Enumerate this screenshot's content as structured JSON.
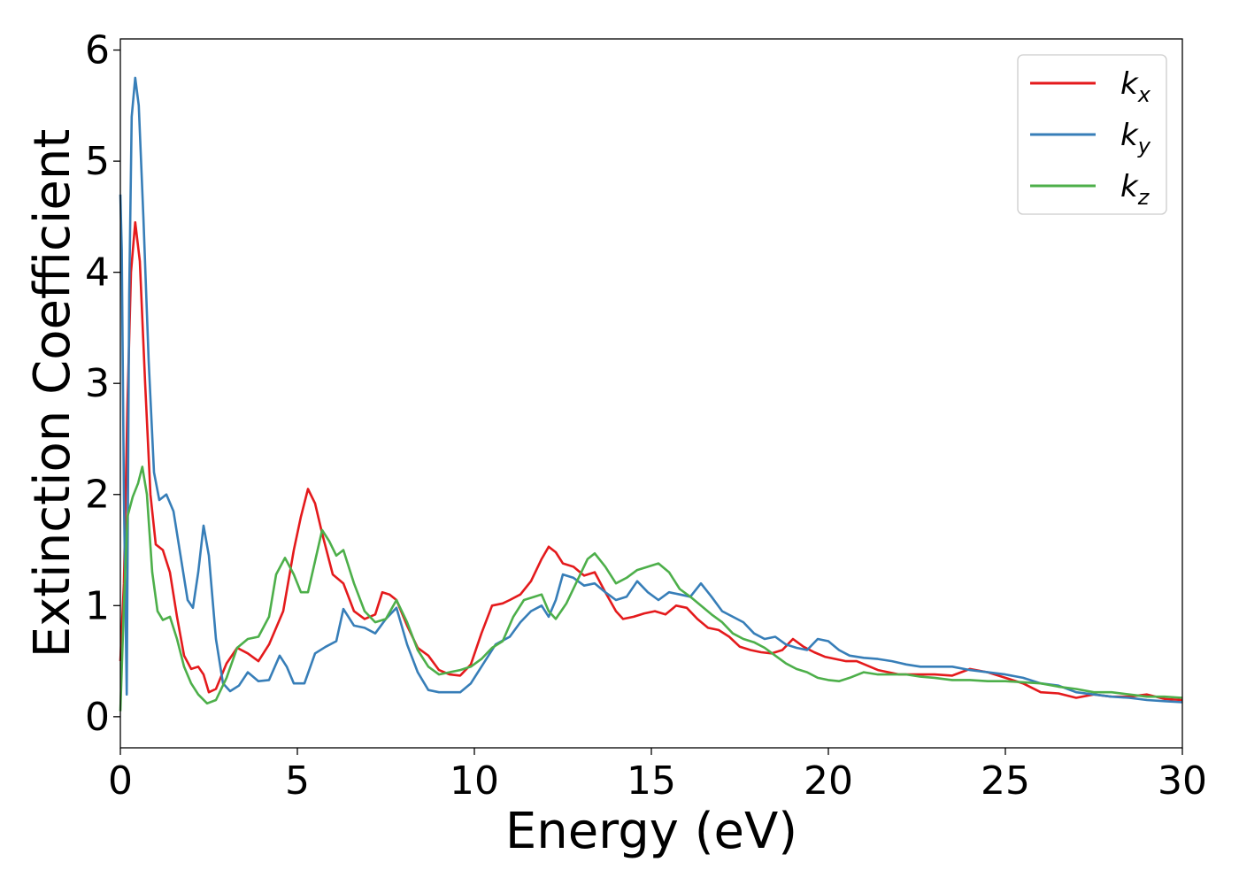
{
  "chart_data": {
    "type": "line",
    "xlabel": "Energy (eV)",
    "ylabel": "Extinction Coefficient",
    "xlim": [
      0,
      30
    ],
    "ylim": [
      -0.28,
      6.1
    ],
    "xticks": [
      "0",
      "5",
      "10",
      "15",
      "20",
      "25",
      "30"
    ],
    "yticks": [
      "0",
      "1",
      "2",
      "3",
      "4",
      "5",
      "6"
    ],
    "grid": false,
    "legend_position": "top-right",
    "series": [
      {
        "name": "k",
        "subscript": "x",
        "color": "#e41a1c",
        "points": [
          [
            0,
            0.5
          ],
          [
            0.1,
            1.2
          ],
          [
            0.2,
            2.8
          ],
          [
            0.3,
            4.0
          ],
          [
            0.42,
            4.45
          ],
          [
            0.55,
            4.1
          ],
          [
            0.7,
            3.0
          ],
          [
            0.85,
            2.0
          ],
          [
            1.0,
            1.55
          ],
          [
            1.2,
            1.5
          ],
          [
            1.4,
            1.3
          ],
          [
            1.6,
            0.9
          ],
          [
            1.8,
            0.55
          ],
          [
            2.0,
            0.43
          ],
          [
            2.2,
            0.45
          ],
          [
            2.35,
            0.38
          ],
          [
            2.5,
            0.22
          ],
          [
            2.7,
            0.25
          ],
          [
            3.0,
            0.48
          ],
          [
            3.3,
            0.62
          ],
          [
            3.6,
            0.57
          ],
          [
            3.9,
            0.5
          ],
          [
            4.2,
            0.65
          ],
          [
            4.6,
            0.95
          ],
          [
            4.9,
            1.5
          ],
          [
            5.1,
            1.8
          ],
          [
            5.3,
            2.05
          ],
          [
            5.5,
            1.92
          ],
          [
            5.7,
            1.65
          ],
          [
            6.0,
            1.28
          ],
          [
            6.3,
            1.2
          ],
          [
            6.6,
            0.95
          ],
          [
            6.9,
            0.88
          ],
          [
            7.2,
            0.92
          ],
          [
            7.4,
            1.12
          ],
          [
            7.6,
            1.1
          ],
          [
            7.8,
            1.05
          ],
          [
            8.1,
            0.82
          ],
          [
            8.4,
            0.62
          ],
          [
            8.7,
            0.55
          ],
          [
            9.0,
            0.42
          ],
          [
            9.3,
            0.38
          ],
          [
            9.6,
            0.37
          ],
          [
            9.9,
            0.47
          ],
          [
            10.2,
            0.75
          ],
          [
            10.5,
            1.0
          ],
          [
            10.8,
            1.02
          ],
          [
            11.0,
            1.05
          ],
          [
            11.3,
            1.1
          ],
          [
            11.6,
            1.22
          ],
          [
            11.9,
            1.42
          ],
          [
            12.1,
            1.53
          ],
          [
            12.3,
            1.48
          ],
          [
            12.5,
            1.38
          ],
          [
            12.8,
            1.35
          ],
          [
            13.1,
            1.27
          ],
          [
            13.4,
            1.3
          ],
          [
            13.7,
            1.12
          ],
          [
            14.0,
            0.95
          ],
          [
            14.2,
            0.88
          ],
          [
            14.5,
            0.9
          ],
          [
            14.8,
            0.93
          ],
          [
            15.1,
            0.95
          ],
          [
            15.4,
            0.92
          ],
          [
            15.7,
            1.0
          ],
          [
            16.0,
            0.98
          ],
          [
            16.3,
            0.88
          ],
          [
            16.6,
            0.8
          ],
          [
            16.9,
            0.78
          ],
          [
            17.2,
            0.72
          ],
          [
            17.5,
            0.63
          ],
          [
            17.8,
            0.6
          ],
          [
            18.1,
            0.58
          ],
          [
            18.4,
            0.57
          ],
          [
            18.7,
            0.6
          ],
          [
            19.0,
            0.7
          ],
          [
            19.3,
            0.63
          ],
          [
            19.6,
            0.58
          ],
          [
            19.9,
            0.54
          ],
          [
            20.2,
            0.52
          ],
          [
            20.5,
            0.5
          ],
          [
            20.8,
            0.5
          ],
          [
            21.1,
            0.46
          ],
          [
            21.4,
            0.42
          ],
          [
            21.7,
            0.4
          ],
          [
            22.0,
            0.38
          ],
          [
            22.5,
            0.38
          ],
          [
            23.0,
            0.38
          ],
          [
            23.5,
            0.37
          ],
          [
            24.0,
            0.43
          ],
          [
            24.5,
            0.4
          ],
          [
            25.0,
            0.35
          ],
          [
            25.5,
            0.3
          ],
          [
            26.0,
            0.22
          ],
          [
            26.5,
            0.21
          ],
          [
            27.0,
            0.17
          ],
          [
            27.5,
            0.2
          ],
          [
            28.0,
            0.18
          ],
          [
            28.5,
            0.18
          ],
          [
            29.0,
            0.2
          ],
          [
            29.5,
            0.16
          ],
          [
            30.0,
            0.15
          ]
        ]
      },
      {
        "name": "k",
        "subscript": "y",
        "color": "#377eb8",
        "points": [
          [
            0,
            4.7
          ],
          [
            0.04,
            4.2
          ],
          [
            0.1,
            2.0
          ],
          [
            0.18,
            0.2
          ],
          [
            0.25,
            3.8
          ],
          [
            0.32,
            5.4
          ],
          [
            0.42,
            5.75
          ],
          [
            0.52,
            5.5
          ],
          [
            0.65,
            4.5
          ],
          [
            0.8,
            3.2
          ],
          [
            0.95,
            2.2
          ],
          [
            1.1,
            1.95
          ],
          [
            1.3,
            2.0
          ],
          [
            1.5,
            1.85
          ],
          [
            1.7,
            1.45
          ],
          [
            1.9,
            1.05
          ],
          [
            2.05,
            0.98
          ],
          [
            2.2,
            1.3
          ],
          [
            2.35,
            1.72
          ],
          [
            2.5,
            1.45
          ],
          [
            2.7,
            0.7
          ],
          [
            2.9,
            0.3
          ],
          [
            3.1,
            0.23
          ],
          [
            3.35,
            0.28
          ],
          [
            3.6,
            0.4
          ],
          [
            3.9,
            0.32
          ],
          [
            4.2,
            0.33
          ],
          [
            4.5,
            0.55
          ],
          [
            4.7,
            0.45
          ],
          [
            4.9,
            0.3
          ],
          [
            5.2,
            0.3
          ],
          [
            5.5,
            0.57
          ],
          [
            5.8,
            0.63
          ],
          [
            6.1,
            0.68
          ],
          [
            6.3,
            0.97
          ],
          [
            6.6,
            0.82
          ],
          [
            6.9,
            0.8
          ],
          [
            7.2,
            0.75
          ],
          [
            7.5,
            0.88
          ],
          [
            7.8,
            0.98
          ],
          [
            8.1,
            0.65
          ],
          [
            8.4,
            0.4
          ],
          [
            8.7,
            0.24
          ],
          [
            9.0,
            0.22
          ],
          [
            9.3,
            0.22
          ],
          [
            9.6,
            0.22
          ],
          [
            9.9,
            0.3
          ],
          [
            10.2,
            0.45
          ],
          [
            10.6,
            0.65
          ],
          [
            11.0,
            0.72
          ],
          [
            11.3,
            0.85
          ],
          [
            11.6,
            0.95
          ],
          [
            11.9,
            1.0
          ],
          [
            12.1,
            0.9
          ],
          [
            12.3,
            1.05
          ],
          [
            12.5,
            1.28
          ],
          [
            12.8,
            1.25
          ],
          [
            13.1,
            1.18
          ],
          [
            13.4,
            1.2
          ],
          [
            13.7,
            1.12
          ],
          [
            14.0,
            1.05
          ],
          [
            14.3,
            1.08
          ],
          [
            14.6,
            1.22
          ],
          [
            14.9,
            1.12
          ],
          [
            15.2,
            1.05
          ],
          [
            15.5,
            1.12
          ],
          [
            15.8,
            1.1
          ],
          [
            16.1,
            1.08
          ],
          [
            16.4,
            1.2
          ],
          [
            16.7,
            1.08
          ],
          [
            17.0,
            0.95
          ],
          [
            17.3,
            0.9
          ],
          [
            17.6,
            0.85
          ],
          [
            17.9,
            0.75
          ],
          [
            18.2,
            0.7
          ],
          [
            18.5,
            0.72
          ],
          [
            18.8,
            0.65
          ],
          [
            19.1,
            0.62
          ],
          [
            19.4,
            0.6
          ],
          [
            19.7,
            0.7
          ],
          [
            20.0,
            0.68
          ],
          [
            20.3,
            0.6
          ],
          [
            20.6,
            0.55
          ],
          [
            21.0,
            0.53
          ],
          [
            21.4,
            0.52
          ],
          [
            21.8,
            0.5
          ],
          [
            22.2,
            0.47
          ],
          [
            22.6,
            0.45
          ],
          [
            23.0,
            0.45
          ],
          [
            23.5,
            0.45
          ],
          [
            24.0,
            0.42
          ],
          [
            24.5,
            0.4
          ],
          [
            25.0,
            0.38
          ],
          [
            25.5,
            0.35
          ],
          [
            26.0,
            0.3
          ],
          [
            26.5,
            0.28
          ],
          [
            27.0,
            0.22
          ],
          [
            27.5,
            0.2
          ],
          [
            28.0,
            0.18
          ],
          [
            28.5,
            0.17
          ],
          [
            29.0,
            0.15
          ],
          [
            29.5,
            0.14
          ],
          [
            30.0,
            0.13
          ]
        ]
      },
      {
        "name": "k",
        "subscript": "z",
        "color": "#4daf4a",
        "points": [
          [
            0,
            0.05
          ],
          [
            0.1,
            1.0
          ],
          [
            0.2,
            1.8
          ],
          [
            0.35,
            1.98
          ],
          [
            0.5,
            2.1
          ],
          [
            0.62,
            2.25
          ],
          [
            0.75,
            2.0
          ],
          [
            0.9,
            1.3
          ],
          [
            1.05,
            0.95
          ],
          [
            1.2,
            0.87
          ],
          [
            1.4,
            0.9
          ],
          [
            1.6,
            0.7
          ],
          [
            1.8,
            0.45
          ],
          [
            2.0,
            0.3
          ],
          [
            2.2,
            0.2
          ],
          [
            2.45,
            0.12
          ],
          [
            2.7,
            0.15
          ],
          [
            3.0,
            0.35
          ],
          [
            3.3,
            0.62
          ],
          [
            3.6,
            0.7
          ],
          [
            3.9,
            0.72
          ],
          [
            4.2,
            0.9
          ],
          [
            4.4,
            1.28
          ],
          [
            4.65,
            1.43
          ],
          [
            4.9,
            1.28
          ],
          [
            5.1,
            1.12
          ],
          [
            5.3,
            1.12
          ],
          [
            5.5,
            1.4
          ],
          [
            5.7,
            1.68
          ],
          [
            5.9,
            1.58
          ],
          [
            6.1,
            1.45
          ],
          [
            6.3,
            1.5
          ],
          [
            6.6,
            1.2
          ],
          [
            6.9,
            0.95
          ],
          [
            7.2,
            0.85
          ],
          [
            7.5,
            0.88
          ],
          [
            7.8,
            1.05
          ],
          [
            8.1,
            0.85
          ],
          [
            8.4,
            0.6
          ],
          [
            8.7,
            0.45
          ],
          [
            9.0,
            0.38
          ],
          [
            9.3,
            0.4
          ],
          [
            9.6,
            0.42
          ],
          [
            9.9,
            0.45
          ],
          [
            10.2,
            0.52
          ],
          [
            10.5,
            0.62
          ],
          [
            10.8,
            0.68
          ],
          [
            11.1,
            0.9
          ],
          [
            11.4,
            1.05
          ],
          [
            11.7,
            1.08
          ],
          [
            11.9,
            1.1
          ],
          [
            12.1,
            0.95
          ],
          [
            12.3,
            0.88
          ],
          [
            12.6,
            1.02
          ],
          [
            12.9,
            1.22
          ],
          [
            13.2,
            1.42
          ],
          [
            13.4,
            1.47
          ],
          [
            13.7,
            1.35
          ],
          [
            14.0,
            1.2
          ],
          [
            14.3,
            1.25
          ],
          [
            14.6,
            1.32
          ],
          [
            14.9,
            1.35
          ],
          [
            15.2,
            1.38
          ],
          [
            15.5,
            1.3
          ],
          [
            15.8,
            1.15
          ],
          [
            16.1,
            1.08
          ],
          [
            16.4,
            1.0
          ],
          [
            16.7,
            0.92
          ],
          [
            17.0,
            0.85
          ],
          [
            17.3,
            0.75
          ],
          [
            17.6,
            0.7
          ],
          [
            17.9,
            0.67
          ],
          [
            18.2,
            0.62
          ],
          [
            18.5,
            0.55
          ],
          [
            18.8,
            0.48
          ],
          [
            19.1,
            0.43
          ],
          [
            19.4,
            0.4
          ],
          [
            19.7,
            0.35
          ],
          [
            20.0,
            0.33
          ],
          [
            20.3,
            0.32
          ],
          [
            20.6,
            0.35
          ],
          [
            21.0,
            0.4
          ],
          [
            21.4,
            0.38
          ],
          [
            21.8,
            0.38
          ],
          [
            22.2,
            0.38
          ],
          [
            22.6,
            0.36
          ],
          [
            23.0,
            0.35
          ],
          [
            23.5,
            0.33
          ],
          [
            24.0,
            0.33
          ],
          [
            24.5,
            0.32
          ],
          [
            25.0,
            0.32
          ],
          [
            25.5,
            0.31
          ],
          [
            26.0,
            0.3
          ],
          [
            26.5,
            0.27
          ],
          [
            27.0,
            0.25
          ],
          [
            27.5,
            0.22
          ],
          [
            28.0,
            0.22
          ],
          [
            28.5,
            0.2
          ],
          [
            29.0,
            0.18
          ],
          [
            29.5,
            0.18
          ],
          [
            30.0,
            0.17
          ]
        ]
      }
    ]
  }
}
